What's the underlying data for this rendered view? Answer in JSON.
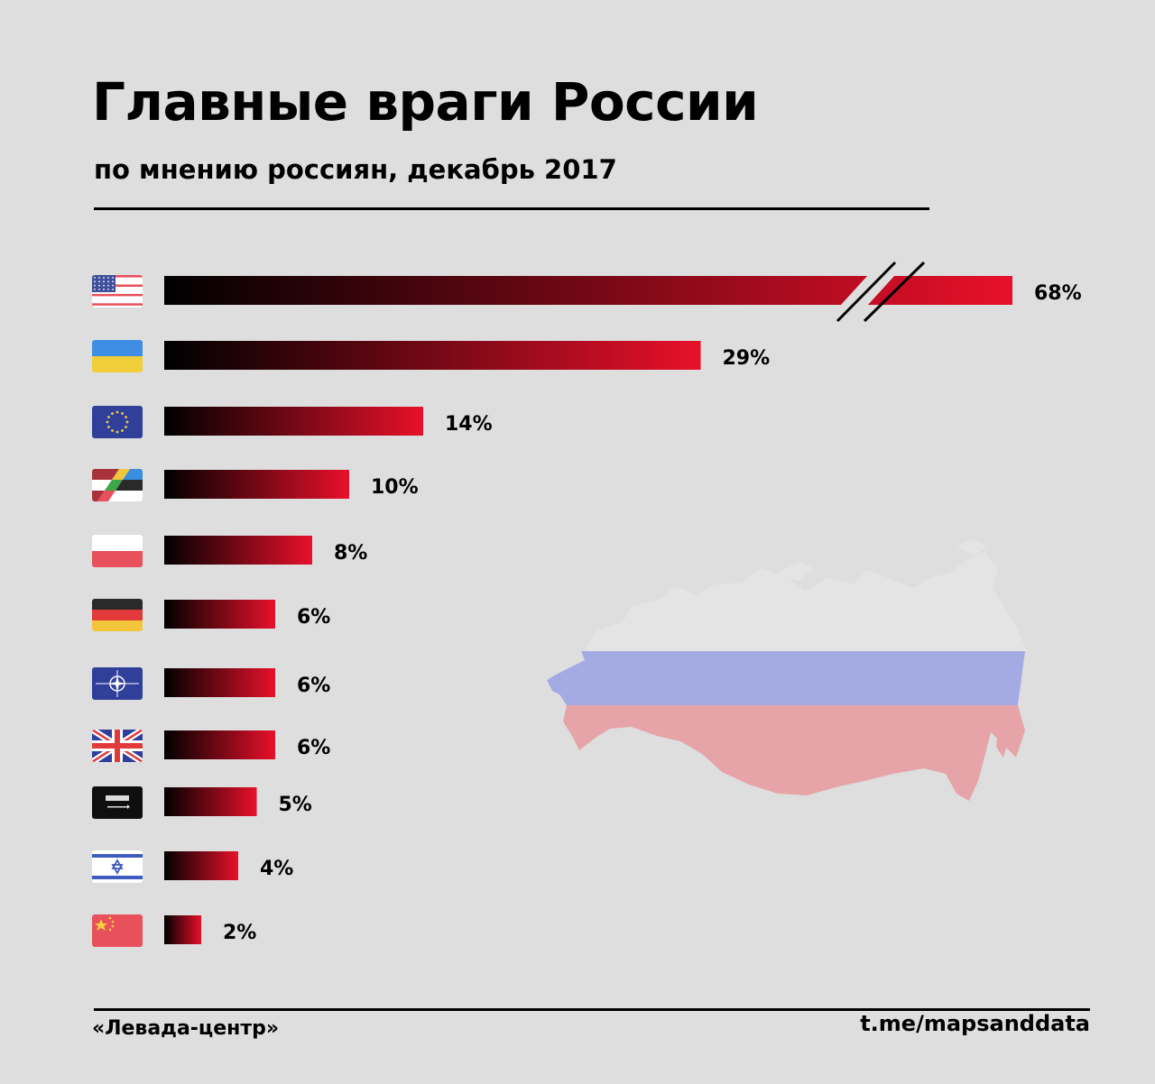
{
  "header": {
    "title": "Главные враги России",
    "subtitle": "по мнению россиян, декабрь 2017"
  },
  "footer": {
    "source": "«Левада-центр»",
    "credit": "t.me/mapsanddata"
  },
  "colors": {
    "bar_start": "#000000",
    "bar_end": "#e8102a",
    "background": "#dedede"
  },
  "chart_data": {
    "type": "bar",
    "orientation": "horizontal",
    "categories": [
      "usa-flag",
      "ukraine-flag",
      "eu-flag",
      "baltic-states-flag",
      "poland-flag",
      "germany-flag",
      "nato-flag",
      "uk-flag",
      "saudi-arabia-flag",
      "israel-flag",
      "china-flag"
    ],
    "values": [
      68,
      29,
      14,
      10,
      8,
      6,
      6,
      6,
      5,
      4,
      2
    ],
    "value_labels": [
      "68%",
      "29%",
      "14%",
      "10%",
      "8%",
      "6%",
      "6%",
      "6%",
      "5%",
      "4%",
      "2%"
    ],
    "axis_break_on_first_bar": true,
    "unit": "%"
  },
  "map": {
    "icon": "russia-map-icon",
    "colors": [
      "#e6e6e6",
      "#a4abe4",
      "#e6a4a8"
    ]
  }
}
